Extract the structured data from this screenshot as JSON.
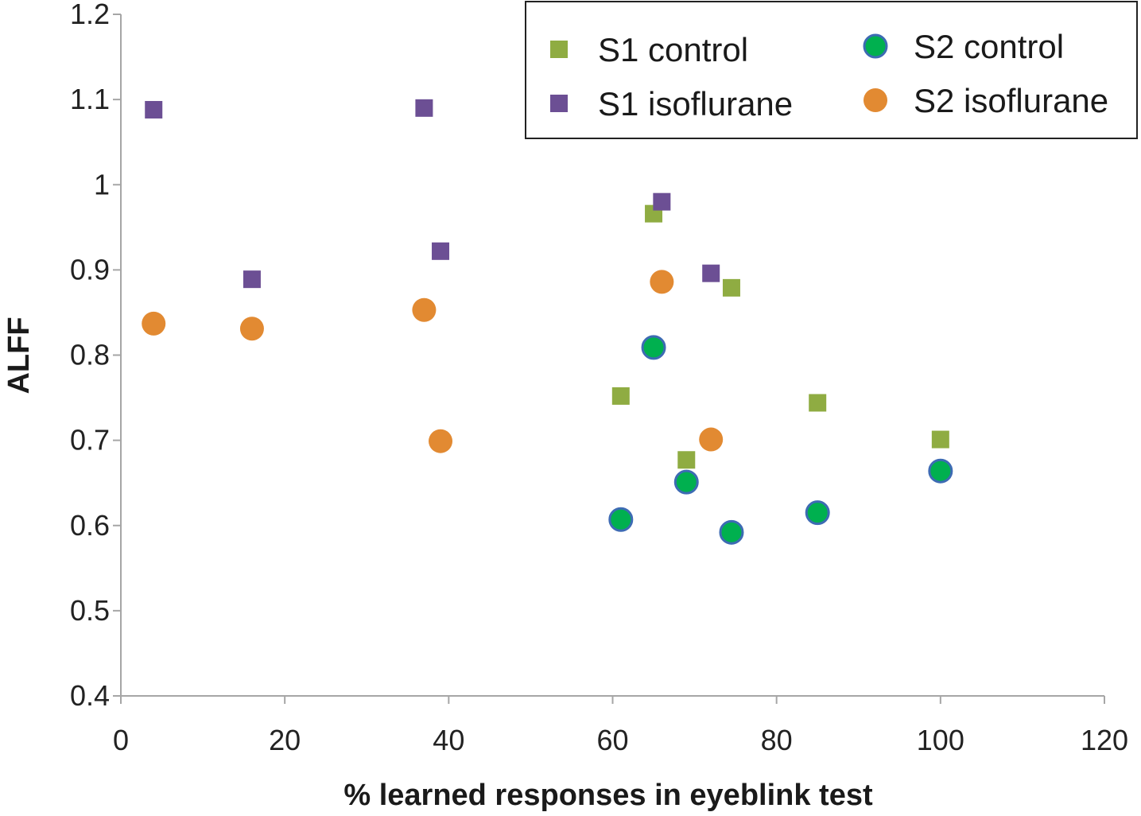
{
  "chart_data": {
    "type": "scatter",
    "title": "",
    "xlabel": "% learned responses in eyeblink test",
    "ylabel": "ALFF",
    "xlim": [
      0,
      120
    ],
    "ylim": [
      0.4,
      1.2
    ],
    "xticks": [
      "0",
      "20",
      "40",
      "60",
      "80",
      "100",
      "120"
    ],
    "yticks": [
      "0.4",
      "0.5",
      "0.6",
      "0.7",
      "0.8",
      "0.9",
      "1",
      "1.1",
      "1.2"
    ],
    "grid": false,
    "legend_position": "top-right",
    "series": [
      {
        "name": "S1 control",
        "marker": "square",
        "color": "#8fac42",
        "x": [
          61,
          65,
          69,
          74.5,
          85,
          100
        ],
        "y": [
          0.752,
          0.966,
          0.677,
          0.879,
          0.744,
          0.701
        ]
      },
      {
        "name": "S1 isoflurane",
        "marker": "square",
        "color": "#6c4f94",
        "x": [
          4,
          16,
          37,
          39,
          66,
          72
        ],
        "y": [
          1.088,
          0.889,
          1.09,
          0.922,
          0.98,
          0.896
        ]
      },
      {
        "name": "S2 control",
        "marker": "circle",
        "color": "#00b04f",
        "edge_color": "#3d6bb3",
        "x": [
          61,
          65,
          69,
          74.5,
          85,
          100
        ],
        "y": [
          0.607,
          0.809,
          0.651,
          0.592,
          0.615,
          0.664
        ]
      },
      {
        "name": "S2 isoflurane",
        "marker": "circle",
        "color": "#e28a32",
        "x": [
          4,
          16,
          37,
          39,
          66,
          72
        ],
        "y": [
          0.837,
          0.831,
          0.853,
          0.699,
          0.886,
          0.701
        ]
      }
    ]
  }
}
